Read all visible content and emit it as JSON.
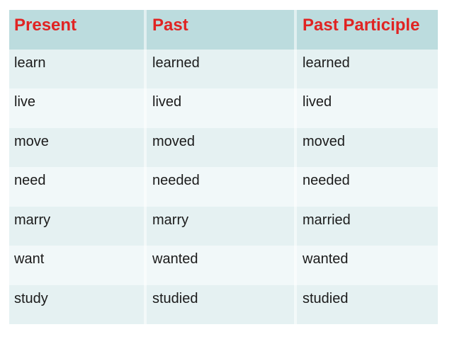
{
  "table": {
    "headers": [
      "Present",
      "Past",
      "Past Participle"
    ],
    "rows": [
      [
        "learn",
        "learned",
        "learned"
      ],
      [
        "live",
        "lived",
        "lived"
      ],
      [
        "move",
        "moved",
        "moved"
      ],
      [
        "need",
        "needed",
        "needed"
      ],
      [
        "marry",
        "marry",
        "married"
      ],
      [
        "want",
        "wanted",
        "wanted"
      ],
      [
        "study",
        "studied",
        "studied"
      ]
    ]
  },
  "colors": {
    "header_bg": "#bcdcde",
    "header_text": "#e02423",
    "row_dark": "#e5f1f2",
    "row_light": "#f1f8f9",
    "divider": "rgba(255,255,255,0.55)",
    "body_text": "#1b1b1b",
    "page_bg": "#ffffff"
  }
}
